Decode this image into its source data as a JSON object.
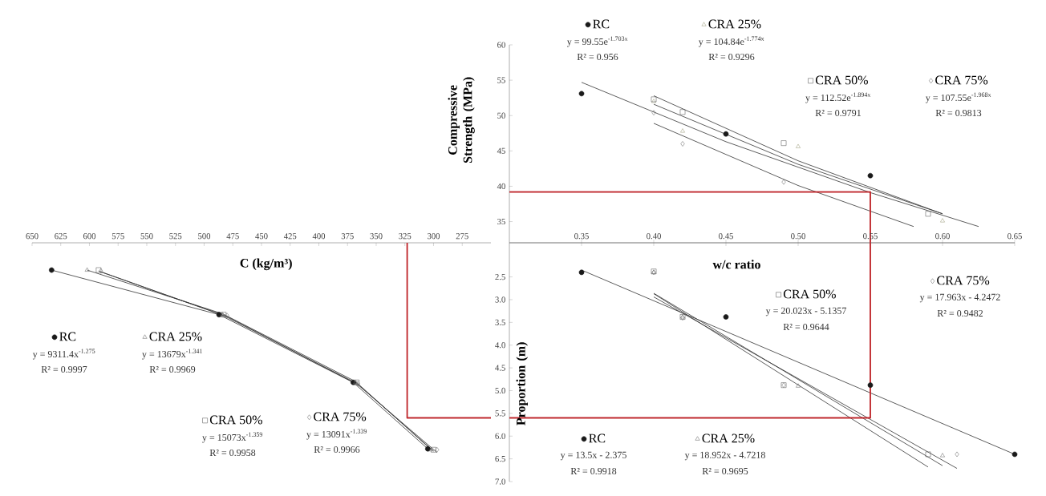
{
  "chart_data": [
    {
      "type": "scatter",
      "ylabel": "Compressive Strength (MPa)",
      "xlim": [
        0.3,
        0.65
      ],
      "ylim": [
        32,
        60
      ],
      "legend": "top",
      "xticks": [
        {
          "value": 0.35,
          "label": null
        },
        {
          "value": 0.4,
          "label": null
        },
        {
          "value": 0.45,
          "label": null
        },
        {
          "value": 0.5,
          "label": null
        },
        {
          "value": 0.55,
          "label": null
        },
        {
          "value": 0.6,
          "label": null
        },
        {
          "value": 0.65,
          "label": null
        }
      ],
      "yticks": [
        35,
        40,
        45,
        50,
        55,
        60
      ],
      "tick_labels": "y",
      "series": [
        {
          "name": "RC",
          "type": "scatter",
          "marker": "circle",
          "color": "#1a1a1a",
          "x": [
            0.35,
            0.45,
            0.55
          ],
          "values": [
            53.1,
            47.4,
            41.5
          ]
        },
        {
          "name": "CRA 25%",
          "type": "scatter",
          "marker": "triangle",
          "color": "#9a9a78",
          "x": [
            0.4,
            0.42,
            0.5,
            0.6
          ],
          "values": [
            52.0,
            47.8,
            45.6,
            35.1
          ]
        },
        {
          "name": "CRA 50%",
          "type": "scatter",
          "marker": "square",
          "color": "#555555",
          "x": [
            0.4,
            0.42,
            0.49,
            0.59
          ],
          "values": [
            52.3,
            50.5,
            46.1,
            36.1
          ]
        },
        {
          "name": "CRA 75%",
          "type": "scatter",
          "marker": "diamond",
          "color": "#666666",
          "x": [
            0.4,
            0.42,
            0.49
          ],
          "values": [
            50.4,
            46.0,
            40.6
          ]
        },
        {
          "type": "line",
          "color": "#333333",
          "x": [
            0.35,
            0.45,
            0.55,
            0.625
          ],
          "values": [
            54.7,
            46.3,
            39.1,
            34.3
          ]
        },
        {
          "type": "line",
          "color": "#333333",
          "x": [
            0.4,
            0.5,
            0.6
          ],
          "values": [
            51.6,
            43.1,
            36.1
          ]
        },
        {
          "type": "line",
          "color": "#333333",
          "x": [
            0.4,
            0.5,
            0.6
          ],
          "values": [
            52.8,
            43.6,
            36.1
          ]
        },
        {
          "type": "line",
          "color": "#333333",
          "x": [
            0.4,
            0.5,
            0.58
          ],
          "values": [
            48.9,
            40.1,
            34.3
          ]
        },
        {
          "type": "line",
          "color": "#c0282d",
          "x": [
            0.3,
            0.55,
            0.55
          ],
          "values": [
            39.2,
            39.2,
            32
          ]
        }
      ],
      "annotations": [
        "y = 99.55e$^{-1.703x}$",
        "R² = 0.956",
        "y = 104.84e$^{-1.774x}$",
        "R² = 0.9296",
        "y = 112.52e$^{-1.894x}$",
        "R² = 0.9791",
        "y = 107.55e$^{-1.968x}$",
        "R² = 0.9813"
      ]
    },
    {
      "type": "scatter",
      "xlabel": "C (kg/m³)",
      "xlim": [
        650,
        250
      ],
      "ylim": [
        7.0,
        1.75
      ],
      "legend": "bottom left",
      "xticks": [
        650,
        625,
        600,
        575,
        550,
        525,
        500,
        475,
        450,
        425,
        400,
        375,
        350,
        325,
        300,
        275
      ],
      "tick_labels": "x",
      "series": [
        {
          "name": "RC",
          "type": "scatter",
          "marker": "circle",
          "color": "#1a1a1a",
          "x": [
            633,
            487,
            370,
            305
          ],
          "values": [
            2.35,
            3.33,
            4.82,
            6.28
          ]
        },
        {
          "name": "CRA 25%",
          "type": "scatter",
          "marker": "triangle",
          "color": "#666666",
          "x": [
            602,
            484,
            368,
            302
          ],
          "values": [
            2.35,
            3.33,
            4.82,
            6.3
          ]
        },
        {
          "name": "CRA 50%",
          "type": "scatter",
          "marker": "square",
          "color": "#555555",
          "x": [
            592,
            483,
            367,
            300
          ],
          "values": [
            2.35,
            3.33,
            4.82,
            6.3
          ]
        },
        {
          "name": "CRA 75%",
          "type": "scatter",
          "marker": "diamond",
          "color": "#666666",
          "x": [
            590,
            480,
            366,
            297
          ],
          "values": [
            2.37,
            3.35,
            4.85,
            6.3
          ]
        },
        {
          "type": "line",
          "color": "#333333",
          "x": [
            633,
            487,
            370,
            305
          ],
          "values": [
            2.35,
            3.33,
            4.82,
            6.28
          ]
        },
        {
          "type": "line",
          "color": "#333333",
          "x": [
            602,
            484,
            368,
            302
          ],
          "values": [
            2.35,
            3.31,
            4.8,
            6.3
          ]
        },
        {
          "type": "line",
          "color": "#333333",
          "x": [
            592,
            483,
            367,
            300
          ],
          "values": [
            2.37,
            3.35,
            4.84,
            6.33
          ]
        },
        {
          "type": "line",
          "color": "#333333",
          "x": [
            590,
            480,
            366,
            297
          ],
          "values": [
            2.39,
            3.37,
            4.87,
            6.36
          ]
        },
        {
          "type": "line",
          "color": "#c0282d",
          "x": [
            250,
            323,
            323
          ],
          "values": [
            5.6,
            5.6,
            1.75
          ]
        }
      ],
      "annotations": [
        "y = 9311.4x$^{-1.275}$",
        "R² = 0.9997",
        "y = 13679x$^{-1.341}$",
        "R² = 0.9969",
        "y = 15073x$^{-1.359}$",
        "R² = 0.9958",
        "y = 13091x$^{-1.339}$",
        "R² = 0.9966"
      ]
    },
    {
      "type": "scatter",
      "xlabel": "w/c ratio",
      "ylabel": "Proportion (m)",
      "xlim": [
        0.3,
        0.65
      ],
      "ylim": [
        7.0,
        1.75
      ],
      "legend": "right",
      "xticks": [
        {
          "value": 0.35,
          "label": "0.35"
        },
        {
          "value": 0.4,
          "label": "0.40"
        },
        {
          "value": 0.45,
          "label": "0.45"
        },
        {
          "value": 0.5,
          "label": "0.50"
        },
        {
          "value": 0.55,
          "label": "0.55"
        },
        {
          "value": 0.6,
          "label": "0.60"
        },
        {
          "value": 0.65,
          "label": "0.65"
        }
      ],
      "yticks": [
        {
          "value": 2.5,
          "label": "2.5"
        },
        {
          "value": 3.0,
          "label": "3.0"
        },
        {
          "value": 3.5,
          "label": "3.5"
        },
        {
          "value": 4.0,
          "label": "4.0"
        },
        {
          "value": 4.5,
          "label": "4.5"
        },
        {
          "value": 5.0,
          "label": "5.0"
        },
        {
          "value": 5.5,
          "label": "5.5"
        },
        {
          "value": 6.0,
          "label": "6.0"
        },
        {
          "value": 6.5,
          "label": "6.5"
        },
        {
          "value": 7.0,
          "label": "7.0"
        }
      ],
      "series": [
        {
          "name": "RC",
          "type": "scatter",
          "marker": "circle",
          "color": "#1a1a1a",
          "x": [
            0.35,
            0.45,
            0.55,
            0.65
          ],
          "values": [
            2.4,
            3.38,
            4.88,
            6.4
          ]
        },
        {
          "name": "CRA 25%",
          "type": "scatter",
          "marker": "triangle",
          "color": "#666666",
          "x": [
            0.4,
            0.42,
            0.5,
            0.6
          ],
          "values": [
            2.4,
            3.38,
            4.9,
            6.43
          ]
        },
        {
          "name": "CRA 50%",
          "type": "scatter",
          "marker": "square",
          "color": "#555555",
          "x": [
            0.4,
            0.42,
            0.49,
            0.59
          ],
          "values": [
            2.38,
            3.38,
            4.88,
            6.4
          ]
        },
        {
          "name": "CRA 75%",
          "type": "scatter",
          "marker": "diamond",
          "color": "#666666",
          "x": [
            0.4,
            0.42,
            0.49,
            0.61
          ],
          "values": [
            2.4,
            3.4,
            4.88,
            6.4
          ]
        },
        {
          "type": "line",
          "color": "#333333",
          "x": [
            0.35,
            0.65
          ],
          "values": [
            2.35,
            6.4
          ]
        },
        {
          "type": "line",
          "color": "#333333",
          "x": [
            0.4,
            0.6
          ],
          "values": [
            2.86,
            6.65
          ]
        },
        {
          "type": "line",
          "color": "#333333",
          "x": [
            0.4,
            0.59
          ],
          "values": [
            2.87,
            6.68
          ]
        },
        {
          "type": "line",
          "color": "#333333",
          "x": [
            0.4,
            0.61
          ],
          "values": [
            2.94,
            6.71
          ]
        },
        {
          "type": "line",
          "color": "#c0282d",
          "x": [
            0.3,
            0.55,
            0.55
          ],
          "values": [
            5.6,
            5.6,
            1.75
          ]
        }
      ],
      "annotations": [
        "y = 13.5x - 2.375",
        "R² = 0.9918",
        "y = 18.952x - 4.7218",
        "R² = 0.9695",
        "y = 20.023x - 5.1357",
        "R² = 0.9644",
        "y = 17.963x - 4.2472",
        "R² = 0.9482"
      ]
    }
  ]
}
